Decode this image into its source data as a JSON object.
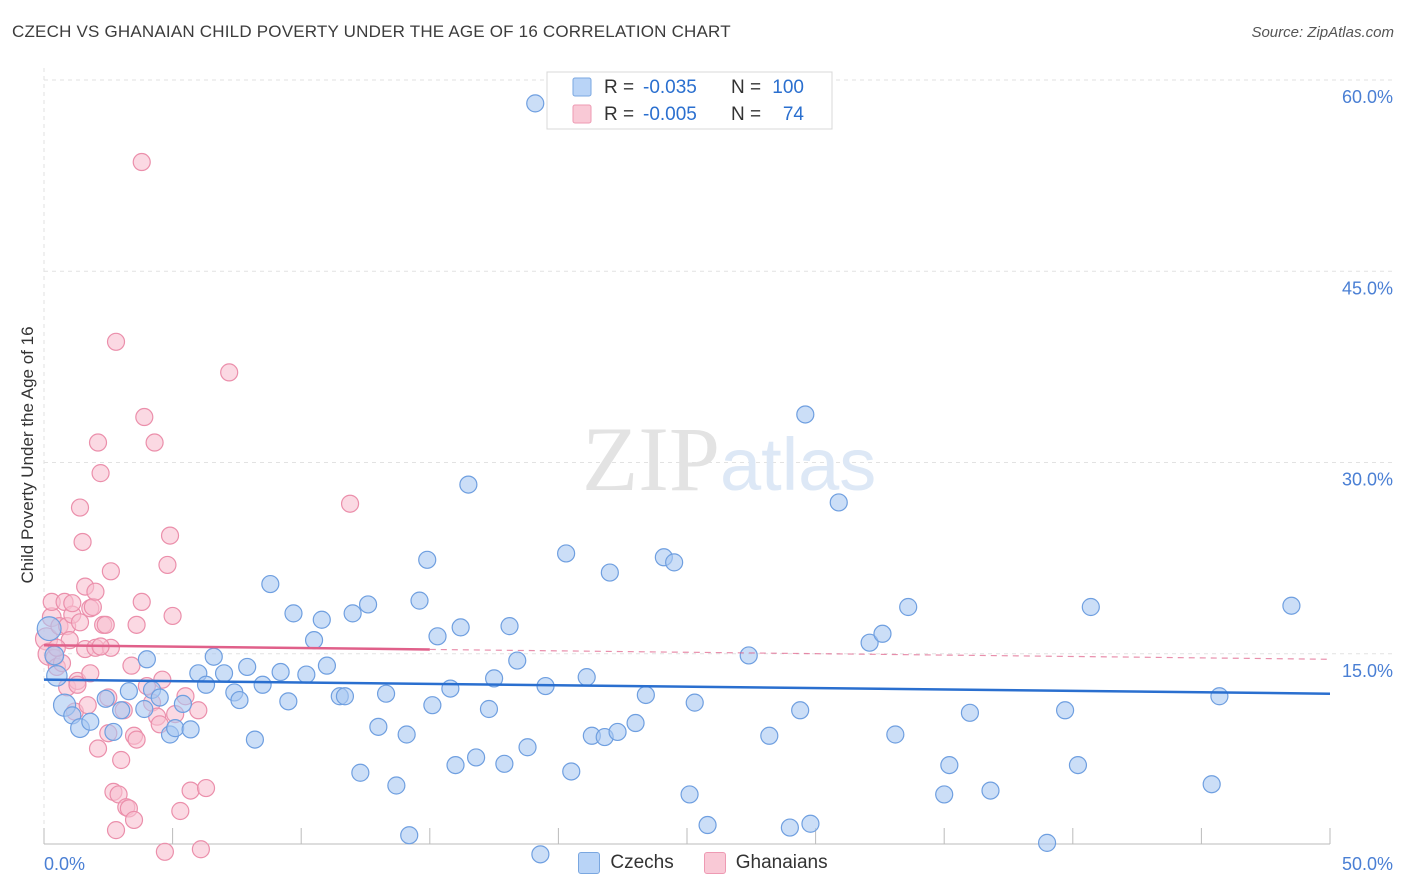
{
  "header": {
    "title": "CZECH VS GHANAIAN CHILD POVERTY UNDER THE AGE OF 16 CORRELATION CHART",
    "source": "Source: ZipAtlas.com"
  },
  "watermark": {
    "zip": "ZIP",
    "atlas": "atlas"
  },
  "colors": {
    "czech_fill": "#a9c8f2",
    "czech_stroke": "#6f9fe0",
    "czech_line": "#2a6fcf",
    "ghana_fill": "#f8bfd0",
    "ghana_stroke": "#eb8fab",
    "ghana_line": "#e0608a",
    "axis_text": "#4a7fd4",
    "grid": "#e2e2e2"
  },
  "stats_legend": {
    "rows": [
      {
        "series": "Czechs",
        "r_label": "R =",
        "r_value": "-0.035",
        "n_label": "N =",
        "n_value": "100"
      },
      {
        "series": "Ghanaians",
        "r_label": "R =",
        "r_value": "-0.005",
        "n_label": "N =",
        "n_value": "74"
      }
    ]
  },
  "legend": {
    "czech_label": "Czechs",
    "ghana_label": "Ghanaians"
  },
  "chart_data": {
    "type": "scatter",
    "title": "CZECH VS GHANAIAN CHILD POVERTY UNDER THE AGE OF 16 CORRELATION CHART",
    "xlabel": "",
    "ylabel": "Child Poverty Under the Age of 16",
    "xlim": [
      0,
      50
    ],
    "ylim": [
      0,
      60
    ],
    "x_tick_labels": [
      "0.0%",
      "50.0%"
    ],
    "y_ticks": [
      15,
      30,
      45,
      60
    ],
    "y_tick_labels": [
      "15.0%",
      "30.0%",
      "45.0%",
      "60.0%"
    ],
    "grid": true,
    "series": [
      {
        "name": "Czechs",
        "r": -0.035,
        "n": 100,
        "trend": {
          "x": [
            0,
            50
          ],
          "y": [
            14.3,
            13.2
          ],
          "dashed_from": null
        },
        "points": [
          [
            0.2,
            18.3,
            1.4
          ],
          [
            0.4,
            16.2,
            1.1
          ],
          [
            0.5,
            14.6,
            1.2
          ],
          [
            0.8,
            12.3,
            1.3
          ],
          [
            1.1,
            11.5,
            1.0
          ],
          [
            1.4,
            10.5,
            1.1
          ],
          [
            1.8,
            11.0,
            1.0
          ],
          [
            2.4,
            12.8,
            1.0
          ],
          [
            2.7,
            10.2,
            1.0
          ],
          [
            3.0,
            11.9,
            1.0
          ],
          [
            3.3,
            13.4,
            1.0
          ],
          [
            3.9,
            12.0,
            1.0
          ],
          [
            4.0,
            15.9,
            1.0
          ],
          [
            4.2,
            13.5,
            1.0
          ],
          [
            4.5,
            12.9,
            1.0
          ],
          [
            4.9,
            10.0,
            1.0
          ],
          [
            5.1,
            10.5,
            1.0
          ],
          [
            5.4,
            12.4,
            1.0
          ],
          [
            5.7,
            10.4,
            1.0
          ],
          [
            6.0,
            14.8,
            1.0
          ],
          [
            6.3,
            13.9,
            1.0
          ],
          [
            6.6,
            16.1,
            1.0
          ],
          [
            7.0,
            14.8,
            1.0
          ],
          [
            7.4,
            13.3,
            1.0
          ],
          [
            7.6,
            12.7,
            1.0
          ],
          [
            7.9,
            15.3,
            1.0
          ],
          [
            8.2,
            9.6,
            1.0
          ],
          [
            8.5,
            13.9,
            1.0
          ],
          [
            8.8,
            21.8,
            1.0
          ],
          [
            9.2,
            14.9,
            1.0
          ],
          [
            9.5,
            12.6,
            1.0
          ],
          [
            9.7,
            19.5,
            1.0
          ],
          [
            10.2,
            14.7,
            1.0
          ],
          [
            10.5,
            17.4,
            1.0
          ],
          [
            10.8,
            19.0,
            1.0
          ],
          [
            11.0,
            15.4,
            1.0
          ],
          [
            11.5,
            13.0,
            1.0
          ],
          [
            11.7,
            13.0,
            1.0
          ],
          [
            12.0,
            19.5,
            1.0
          ],
          [
            12.3,
            7.0,
            1.0
          ],
          [
            12.6,
            20.2,
            1.0
          ],
          [
            13.0,
            10.6,
            1.0
          ],
          [
            13.3,
            13.2,
            1.0
          ],
          [
            13.7,
            6.0,
            1.0
          ],
          [
            14.1,
            10.0,
            1.0
          ],
          [
            14.2,
            2.1,
            1.0
          ],
          [
            14.6,
            20.5,
            1.0
          ],
          [
            14.9,
            23.7,
            1.0
          ],
          [
            15.1,
            12.3,
            1.0
          ],
          [
            15.3,
            17.7,
            1.0
          ],
          [
            15.8,
            13.6,
            1.0
          ],
          [
            16.0,
            7.6,
            1.0
          ],
          [
            16.2,
            18.4,
            1.0
          ],
          [
            16.5,
            29.6,
            1.0
          ],
          [
            16.8,
            8.2,
            1.0
          ],
          [
            17.3,
            12.0,
            1.0
          ],
          [
            17.5,
            14.4,
            1.0
          ],
          [
            17.9,
            7.7,
            1.0
          ],
          [
            18.1,
            18.5,
            1.0
          ],
          [
            18.4,
            15.8,
            1.0
          ],
          [
            18.8,
            9.0,
            1.0
          ],
          [
            19.1,
            59.5,
            1.0
          ],
          [
            19.3,
            0.6,
            1.0
          ],
          [
            19.5,
            13.8,
            1.0
          ],
          [
            20.3,
            24.2,
            1.0
          ],
          [
            20.5,
            7.1,
            1.0
          ],
          [
            21.1,
            14.5,
            1.0
          ],
          [
            21.3,
            9.9,
            1.0
          ],
          [
            21.8,
            9.8,
            1.0
          ],
          [
            22.0,
            22.7,
            1.0
          ],
          [
            22.3,
            10.2,
            1.0
          ],
          [
            23.0,
            10.9,
            1.0
          ],
          [
            23.4,
            13.1,
            1.0
          ],
          [
            24.1,
            23.9,
            1.0
          ],
          [
            24.5,
            23.5,
            1.0
          ],
          [
            25.1,
            5.3,
            1.0
          ],
          [
            25.3,
            12.5,
            1.0
          ],
          [
            25.8,
            2.9,
            1.0
          ],
          [
            27.4,
            16.2,
            1.0
          ],
          [
            28.2,
            9.9,
            1.0
          ],
          [
            29.0,
            2.7,
            1.0
          ],
          [
            29.4,
            11.9,
            1.0
          ],
          [
            29.6,
            35.1,
            1.0
          ],
          [
            29.8,
            3.0,
            1.0
          ],
          [
            30.9,
            28.2,
            1.0
          ],
          [
            32.1,
            17.2,
            1.0
          ],
          [
            32.6,
            17.9,
            1.0
          ],
          [
            33.1,
            10.0,
            1.0
          ],
          [
            33.6,
            20.0,
            1.0
          ],
          [
            35.0,
            5.3,
            1.0
          ],
          [
            35.2,
            7.6,
            1.0
          ],
          [
            36.0,
            11.7,
            1.0
          ],
          [
            36.8,
            5.6,
            1.0
          ],
          [
            39.0,
            1.5,
            1.0
          ],
          [
            39.7,
            11.9,
            1.0
          ],
          [
            40.2,
            7.6,
            1.0
          ],
          [
            40.7,
            20.0,
            1.0
          ],
          [
            45.4,
            6.1,
            1.0
          ],
          [
            45.7,
            13.0,
            1.0
          ],
          [
            48.5,
            20.1,
            1.0
          ]
        ]
      },
      {
        "name": "Ghanaians",
        "r": -0.005,
        "n": 74,
        "trend": {
          "x": [
            0,
            50
          ],
          "y": [
            17.0,
            15.9
          ],
          "dashed_from": 15
        },
        "points": [
          [
            0.1,
            17.5,
            1.3
          ],
          [
            0.2,
            16.3,
            1.3
          ],
          [
            0.3,
            19.2,
            1.1
          ],
          [
            0.3,
            20.4,
            1.0
          ],
          [
            0.4,
            16.0,
            1.0
          ],
          [
            0.5,
            15.3,
            1.0
          ],
          [
            0.6,
            18.5,
            1.0
          ],
          [
            0.7,
            15.6,
            1.0
          ],
          [
            0.8,
            20.4,
            1.0
          ],
          [
            0.9,
            18.5,
            1.0
          ],
          [
            0.9,
            13.7,
            1.0
          ],
          [
            1.0,
            17.4,
            1.0
          ],
          [
            1.1,
            19.4,
            1.0
          ],
          [
            1.1,
            20.3,
            1.0
          ],
          [
            1.2,
            11.8,
            1.0
          ],
          [
            1.3,
            14.2,
            1.0
          ],
          [
            1.4,
            18.8,
            1.0
          ],
          [
            1.4,
            27.8,
            1.0
          ],
          [
            1.5,
            25.1,
            1.0
          ],
          [
            1.6,
            21.6,
            1.0
          ],
          [
            1.6,
            16.7,
            1.0
          ],
          [
            1.7,
            12.3,
            1.0
          ],
          [
            1.8,
            19.9,
            1.0
          ],
          [
            1.8,
            14.8,
            1.0
          ],
          [
            1.9,
            20.0,
            1.0
          ],
          [
            2.0,
            16.8,
            1.0
          ],
          [
            2.0,
            21.2,
            1.0
          ],
          [
            2.1,
            32.9,
            1.0
          ],
          [
            2.1,
            8.9,
            1.0
          ],
          [
            2.2,
            30.5,
            1.0
          ],
          [
            2.3,
            18.6,
            1.0
          ],
          [
            2.4,
            18.6,
            1.0
          ],
          [
            2.5,
            12.9,
            1.0
          ],
          [
            2.5,
            10.1,
            1.0
          ],
          [
            2.6,
            16.8,
            1.0
          ],
          [
            2.6,
            22.8,
            1.0
          ],
          [
            2.7,
            5.5,
            1.0
          ],
          [
            2.8,
            2.5,
            1.0
          ],
          [
            2.8,
            40.8,
            1.0
          ],
          [
            2.9,
            5.3,
            1.0
          ],
          [
            3.0,
            8.0,
            1.0
          ],
          [
            3.1,
            11.9,
            1.0
          ],
          [
            3.2,
            4.3,
            1.0
          ],
          [
            3.3,
            4.2,
            1.0
          ],
          [
            3.4,
            15.4,
            1.0
          ],
          [
            3.5,
            9.9,
            1.0
          ],
          [
            3.5,
            3.3,
            1.0
          ],
          [
            3.6,
            18.6,
            1.0
          ],
          [
            3.6,
            9.6,
            1.0
          ],
          [
            3.8,
            20.4,
            1.0
          ],
          [
            3.8,
            54.9,
            1.0
          ],
          [
            3.9,
            34.9,
            1.0
          ],
          [
            4.0,
            13.8,
            1.0
          ],
          [
            4.2,
            12.5,
            1.0
          ],
          [
            4.3,
            32.9,
            1.0
          ],
          [
            4.4,
            11.4,
            1.0
          ],
          [
            4.5,
            10.8,
            1.0
          ],
          [
            4.6,
            14.3,
            1.0
          ],
          [
            4.7,
            0.8,
            1.0
          ],
          [
            4.8,
            23.3,
            1.0
          ],
          [
            4.9,
            25.6,
            1.0
          ],
          [
            5.0,
            19.3,
            1.0
          ],
          [
            5.1,
            11.6,
            1.0
          ],
          [
            5.3,
            4.0,
            1.0
          ],
          [
            5.5,
            13.0,
            1.0
          ],
          [
            5.7,
            5.6,
            1.0
          ],
          [
            6.0,
            11.9,
            1.0
          ],
          [
            6.1,
            1.0,
            1.0
          ],
          [
            6.3,
            5.8,
            1.0
          ],
          [
            7.2,
            38.4,
            1.0
          ],
          [
            11.9,
            28.1,
            1.0
          ],
          [
            0.5,
            16.8,
            1.0
          ],
          [
            1.3,
            13.9,
            1.0
          ],
          [
            2.2,
            16.9,
            1.0
          ]
        ]
      }
    ]
  }
}
